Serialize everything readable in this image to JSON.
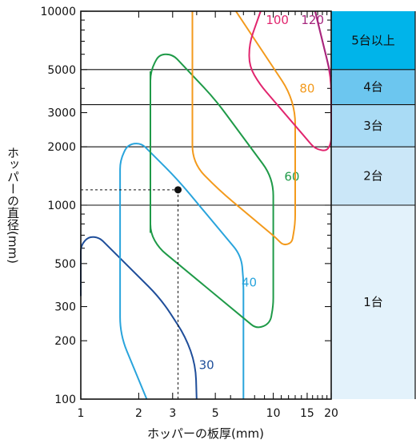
{
  "chart_data": {
    "type": "line",
    "xlabel": "ホッパーの板厚(mm)",
    "ylabel": "ホッパーの直径(mm)",
    "x_scale": "log",
    "y_scale": "log",
    "xlim": [
      1,
      20
    ],
    "ylim": [
      100,
      10000
    ],
    "x_ticks": [
      1,
      2,
      3,
      5,
      10,
      15,
      20
    ],
    "y_ticks": [
      100,
      200,
      300,
      500,
      1000,
      2000,
      3000,
      5000,
      10000
    ],
    "series": [
      {
        "name": "30",
        "color": "#1f4e9a",
        "points": [
          [
            1,
            340
          ],
          [
            1,
            620
          ],
          [
            1.1,
            690
          ],
          [
            1.25,
            680
          ],
          [
            2.6,
            330
          ],
          [
            3.5,
            210
          ],
          [
            3.95,
            150
          ],
          [
            4,
            100
          ]
        ],
        "label_at": [
          4.5,
          150
        ]
      },
      {
        "name": "40",
        "color": "#29a4dc",
        "points": [
          [
            2.2,
            100
          ],
          [
            1.6,
            215
          ],
          [
            1.6,
            1700
          ],
          [
            1.75,
            2050
          ],
          [
            2.05,
            2100
          ],
          [
            3.2,
            1350
          ],
          [
            6.8,
            550
          ],
          [
            7,
            420
          ],
          [
            7,
            100
          ]
        ],
        "label_at": [
          7.5,
          400
        ]
      },
      {
        "name": "60",
        "color": "#1f9a48",
        "points": [
          [
            2.3,
            720
          ],
          [
            2.3,
            4900
          ],
          [
            2.55,
            6000
          ],
          [
            3,
            6000
          ],
          [
            5,
            3500
          ],
          [
            10,
            1380
          ],
          [
            10,
            300
          ],
          [
            9.6,
            245
          ],
          [
            8.2,
            230
          ],
          [
            2.55,
            600
          ]
        ],
        "label_at": [
          12.5,
          1400
        ]
      },
      {
        "name": "80",
        "color": "#f39a1c",
        "points": [
          [
            3.8,
            10000
          ],
          [
            3.8,
            1650
          ],
          [
            5.2,
            1200
          ],
          [
            10.3,
            680
          ],
          [
            11.3,
            620
          ],
          [
            12.5,
            640
          ],
          [
            13,
            800
          ],
          [
            13,
            3000
          ],
          [
            12,
            3900
          ],
          [
            6.4,
            10000
          ]
        ],
        "label_at": [
          15,
          4000
        ]
      },
      {
        "name": "100",
        "color": "#e1256e",
        "points": [
          [
            8.6,
            10000
          ],
          [
            7.5,
            6800
          ],
          [
            7.5,
            5200
          ],
          [
            8.5,
            4200
          ],
          [
            16.5,
            1950
          ],
          [
            19,
            1900
          ],
          [
            20,
            2100
          ],
          [
            20,
            4600
          ],
          [
            16.5,
            10000
          ]
        ],
        "label_at": [
          10.5,
          9000
        ]
      },
      {
        "name": "120",
        "color": "#a6287f",
        "points": [
          [
            16.5,
            10000
          ],
          [
            20,
            4600
          ]
        ],
        "label_at": [
          16,
          9000
        ]
      }
    ],
    "example_point": {
      "x": 3.2,
      "y": 1200
    },
    "zones": [
      {
        "label": "5台以上",
        "from": 5000,
        "to": 10000,
        "color": "#00b4ea"
      },
      {
        "label": "4台",
        "from": 3300,
        "to": 5000,
        "color": "#6cc6ef"
      },
      {
        "label": "3台",
        "from": 2000,
        "to": 3300,
        "color": "#a9dbf5"
      },
      {
        "label": "2台",
        "from": 1000,
        "to": 2000,
        "color": "#cbe7f8"
      },
      {
        "label": "1台",
        "from": 100,
        "to": 1000,
        "color": "#e3f2fb"
      }
    ],
    "zone_boundaries": [
      5000,
      3300,
      2000,
      1000
    ],
    "grid": false,
    "legend": "none"
  }
}
